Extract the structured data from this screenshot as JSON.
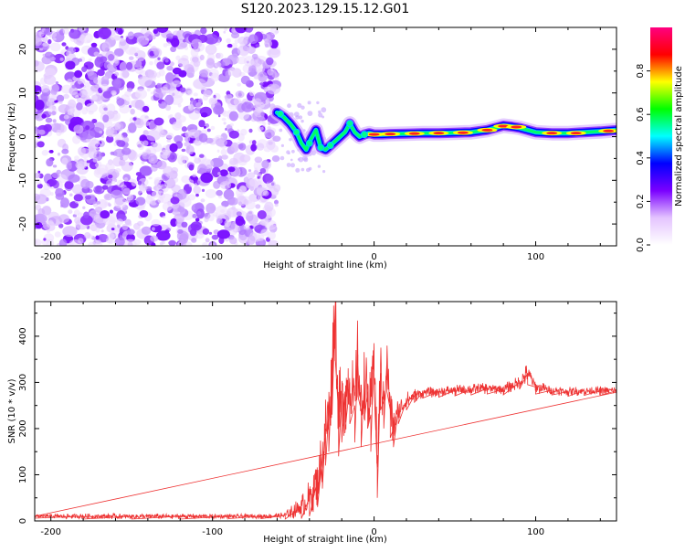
{
  "figure": {
    "title": "S120.2023.129.15.12.G01"
  },
  "chart_data": [
    {
      "type": "heatmap",
      "xlabel": "Height of straight line (km)",
      "ylabel": "Frequency (Hz)",
      "xlim": [
        -210,
        150
      ],
      "ylim": [
        -25,
        25
      ],
      "xticks": [
        -200,
        -100,
        0,
        100
      ],
      "yticks": [
        -20,
        -10,
        0,
        10,
        20
      ],
      "grid": false,
      "noise_region": {
        "x": [
          -210,
          -60
        ],
        "y": [
          -25,
          25
        ]
      },
      "ridge": {
        "x": [
          -60,
          -56,
          -52,
          -48,
          -45,
          -42,
          -39,
          -36,
          -33,
          -30,
          -27,
          -24,
          -21,
          -18,
          -15,
          -12,
          -9,
          -6,
          -3,
          0,
          5,
          10,
          20,
          30,
          40,
          50,
          60,
          70,
          75,
          80,
          85,
          90,
          95,
          100,
          110,
          120,
          130,
          140,
          150
        ],
        "y": [
          5.5,
          4.5,
          3.0,
          1.0,
          -1.5,
          -3.0,
          -0.5,
          1.5,
          -2.5,
          -3.0,
          -2.0,
          -1.0,
          0.0,
          1.0,
          3.0,
          1.0,
          0.0,
          0.5,
          0.8,
          0.5,
          0.5,
          0.6,
          0.7,
          0.8,
          0.8,
          0.9,
          1.0,
          1.5,
          2.0,
          2.5,
          2.3,
          2.0,
          1.5,
          1.0,
          0.8,
          0.8,
          1.0,
          1.2,
          1.5
        ]
      },
      "colorbar": {
        "label": "Normalized spectral amplitude",
        "range": [
          0,
          1
        ],
        "ticks": [
          "0.0",
          "0.2",
          "0.4",
          "0.6",
          "0.8"
        ],
        "tick_values": [
          0.0,
          0.2,
          0.4,
          0.6,
          0.8
        ],
        "colormap": [
          "#ffffff",
          "#e4c4ff",
          "#7a00ff",
          "#0000ff",
          "#00ffff",
          "#00ff00",
          "#ffff00",
          "#ff0000",
          "#ff0080"
        ]
      }
    },
    {
      "type": "line",
      "xlabel": "Height of straight line (km)",
      "ylabel": "SNR (10 * v/v)",
      "xlim": [
        -210,
        150
      ],
      "ylim": [
        0,
        475
      ],
      "xticks": [
        -200,
        -100,
        0,
        100
      ],
      "yticks": [
        0,
        100,
        200,
        300,
        400
      ],
      "grid": false,
      "series": [
        {
          "color": "#ee3333",
          "x": [
            -210,
            -180,
            -150,
            -120,
            -90,
            -70,
            -55,
            -45,
            -40,
            -35,
            -32,
            -30,
            -28,
            -26,
            -24,
            -22,
            -20,
            -18,
            -15,
            -12,
            -10,
            -8,
            -6,
            -4,
            -2,
            0,
            2,
            4,
            6,
            8,
            10,
            12,
            15,
            20,
            25,
            30,
            40,
            50,
            60,
            70,
            80,
            90,
            95,
            100,
            110,
            120,
            130,
            140,
            150
          ],
          "values": [
            10,
            10,
            10,
            10,
            10,
            10,
            12,
            30,
            50,
            90,
            140,
            200,
            240,
            330,
            470,
            230,
            260,
            280,
            300,
            250,
            360,
            240,
            300,
            280,
            230,
            385,
            110,
            320,
            260,
            350,
            240,
            200,
            240,
            260,
            272,
            278,
            280,
            283,
            285,
            287,
            285,
            300,
            320,
            290,
            283,
            280,
            282,
            282,
            282
          ],
          "noise": [
            4,
            6,
            6,
            6,
            5,
            5,
            8,
            25,
            40,
            60,
            70,
            80,
            90,
            100,
            120,
            90,
            90,
            90,
            90,
            80,
            90,
            80,
            80,
            80,
            80,
            100,
            60,
            80,
            60,
            70,
            60,
            40,
            30,
            20,
            15,
            12,
            12,
            12,
            12,
            12,
            12,
            15,
            25,
            15,
            10,
            10,
            10,
            10,
            10
          ]
        }
      ]
    }
  ]
}
